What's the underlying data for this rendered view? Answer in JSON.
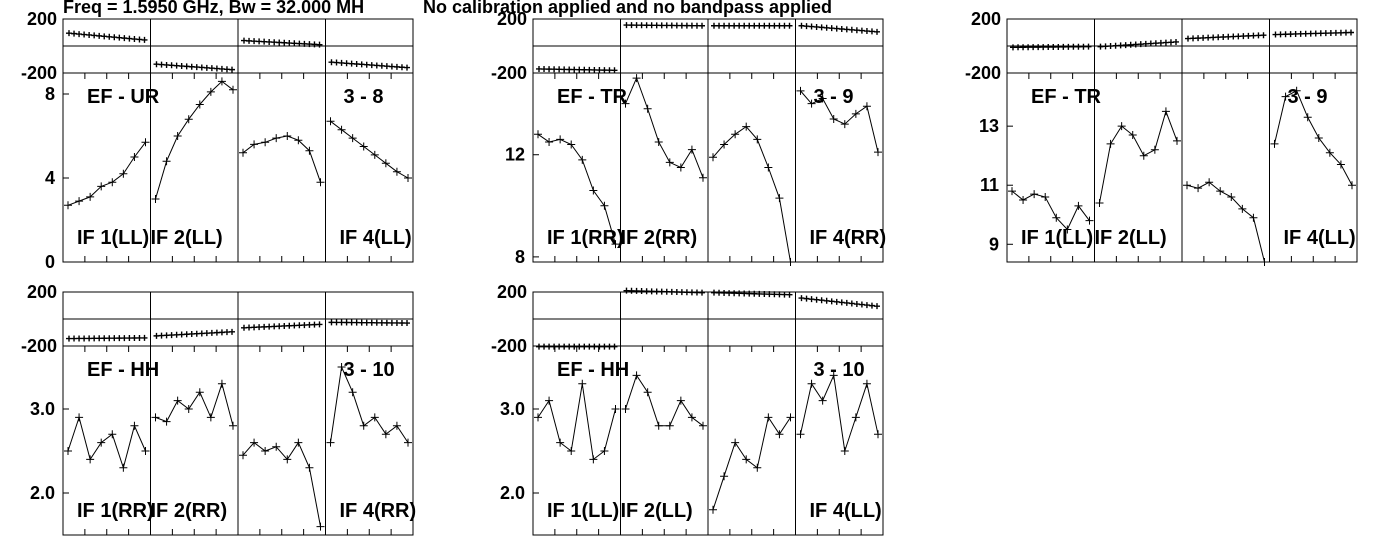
{
  "header": {
    "freq_text": "Freq = 1.5950 GHz, Bw = 32.000 MH",
    "status_text": "No calibration applied and no bandpass applied"
  },
  "colors": {
    "ink": "#000000",
    "background": "#ffffff"
  },
  "chart_data": [
    {
      "type": "line",
      "title": "EF - UR",
      "baseline": "3 - 8",
      "phase_ticks": [
        "200",
        "-200"
      ],
      "phase_ylim": [
        -200,
        200
      ],
      "amp_ticks": [
        "8",
        "4",
        "0"
      ],
      "amp_ylim": [
        0,
        9
      ],
      "if_labels": [
        "IF 1(LL)",
        "IF 2(LL)",
        "",
        "IF 4(LL)"
      ],
      "series": [
        {
          "phase": [
            95,
            45
          ],
          "amp": [
            2.7,
            2.9,
            3.1,
            3.6,
            3.8,
            4.2,
            5.0,
            5.7
          ]
        },
        {
          "phase": [
            -135,
            -175,
            180,
            180
          ],
          "amp": [
            3.0,
            4.8,
            6.0,
            6.8,
            7.5,
            8.1,
            8.6,
            8.2
          ]
        },
        {
          "phase": [
            40,
            10
          ],
          "amp": [
            5.2,
            5.6,
            5.7,
            5.9,
            6.0,
            5.8,
            5.3,
            3.8
          ]
        },
        {
          "phase": [
            -120,
            -160,
            195,
            140
          ],
          "amp": [
            6.7,
            6.3,
            5.9,
            5.5,
            5.1,
            4.7,
            4.3,
            4.0
          ]
        }
      ]
    },
    {
      "type": "line",
      "title": "EF - TR",
      "baseline": "3 - 9",
      "phase_ticks": [
        "200",
        "-200"
      ],
      "phase_ylim": [
        -200,
        200
      ],
      "amp_ticks": [
        "12",
        "8"
      ],
      "amp_ylim": [
        7.8,
        15.2
      ],
      "if_labels": [
        "IF 1(RR)",
        "IF 2(RR)",
        "",
        "IF 4(RR)"
      ],
      "series": [
        {
          "phase": [
            -170,
            -180
          ],
          "amp": [
            12.8,
            12.5,
            12.6,
            12.4,
            11.8,
            10.6,
            10.0,
            8.5
          ]
        },
        {
          "phase": [
            155,
            150
          ],
          "amp": [
            14.0,
            15.0,
            13.8,
            12.5,
            11.7,
            11.5,
            12.2,
            11.1
          ]
        },
        {
          "phase": [
            150,
            150
          ],
          "amp": [
            11.9,
            12.4,
            12.8,
            13.1,
            12.6,
            11.5,
            10.3,
            7.8
          ]
        },
        {
          "phase": [
            150,
            105
          ],
          "amp": [
            14.5,
            14.0,
            14.2,
            13.4,
            13.2,
            13.6,
            13.9,
            12.1
          ]
        }
      ]
    },
    {
      "type": "line",
      "title": "EF - TR",
      "baseline": "3 - 9",
      "phase_ticks": [
        "200",
        "-200"
      ],
      "phase_ylim": [
        -200,
        200
      ],
      "amp_ticks": [
        "13",
        "11",
        "9"
      ],
      "amp_ylim": [
        8.4,
        14.8
      ],
      "if_labels": [
        "IF 1(LL)",
        "IF 2(LL)",
        "",
        "IF 4(LL)"
      ],
      "series": [
        {
          "phase": [
            -10,
            -5
          ],
          "amp": [
            10.8,
            10.5,
            10.7,
            10.6,
            9.9,
            9.5,
            10.3,
            9.8
          ]
        },
        {
          "phase": [
            -5,
            30
          ],
          "amp": [
            10.4,
            12.4,
            13.0,
            12.7,
            12.0,
            12.2,
            13.5,
            12.5
          ]
        },
        {
          "phase": [
            55,
            80
          ],
          "amp": [
            11.0,
            10.9,
            11.1,
            10.8,
            10.6,
            10.2,
            9.9,
            8.4
          ]
        },
        {
          "phase": [
            85,
            100
          ],
          "amp": [
            12.4,
            14.0,
            14.2,
            13.3,
            12.6,
            12.1,
            11.7,
            11.0
          ]
        }
      ]
    },
    {
      "type": "line",
      "title": "EF - HH",
      "baseline": "3 - 10",
      "phase_ticks": [
        "200",
        "-200"
      ],
      "phase_ylim": [
        -200,
        200
      ],
      "amp_ticks": [
        "3.0",
        "2.0"
      ],
      "amp_ylim": [
        1.5,
        3.75
      ],
      "if_labels": [
        "IF 1(RR)",
        "IF 2(RR)",
        "",
        "IF 4(RR)"
      ],
      "series": [
        {
          "phase": [
            -145,
            -140
          ],
          "amp": [
            2.5,
            2.9,
            2.4,
            2.6,
            2.7,
            2.3,
            2.8,
            2.5
          ]
        },
        {
          "phase": [
            -125,
            -95
          ],
          "amp": [
            2.9,
            2.85,
            3.1,
            3.0,
            3.2,
            2.9,
            3.3,
            2.8
          ]
        },
        {
          "phase": [
            -65,
            -40
          ],
          "amp": [
            2.45,
            2.6,
            2.5,
            2.55,
            2.4,
            2.6,
            2.3,
            1.6
          ]
        },
        {
          "phase": [
            -25,
            -30
          ],
          "amp": [
            2.6,
            3.5,
            3.2,
            2.8,
            2.9,
            2.7,
            2.8,
            2.6
          ]
        }
      ]
    },
    {
      "type": "line",
      "title": "EF - HH",
      "baseline": "3 - 10",
      "phase_ticks": [
        "200",
        "-200"
      ],
      "phase_ylim": [
        -200,
        200
      ],
      "amp_ticks": [
        "3.0",
        "2.0"
      ],
      "amp_ylim": [
        1.5,
        3.75
      ],
      "if_labels": [
        "IF 1(LL)",
        "IF 2(LL)",
        "",
        "IF 4(LL)"
      ],
      "series": [
        {
          "phase": [
            -205,
            -205
          ],
          "amp": [
            2.9,
            3.1,
            2.6,
            2.5,
            3.3,
            2.4,
            2.5,
            3.0
          ]
        },
        {
          "phase": [
            210,
            195
          ],
          "amp": [
            3.0,
            3.4,
            3.2,
            2.8,
            2.8,
            3.1,
            2.9,
            2.8
          ]
        },
        {
          "phase": [
            195,
            180
          ],
          "amp": [
            1.8,
            2.2,
            2.6,
            2.4,
            2.3,
            2.9,
            2.7,
            2.9
          ]
        },
        {
          "phase": [
            155,
            95
          ],
          "amp": [
            2.7,
            3.3,
            3.1,
            3.4,
            2.5,
            2.9,
            3.3,
            2.7
          ]
        }
      ]
    }
  ]
}
